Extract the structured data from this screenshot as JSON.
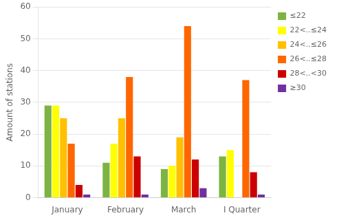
{
  "chart_data": {
    "type": "bar",
    "categories": [
      "January",
      "February",
      "March",
      "I Quarter"
    ],
    "series": [
      {
        "name": "≤22",
        "color": "#7cb342",
        "values": [
          29,
          11,
          9,
          13
        ]
      },
      {
        "name": "22<..≤24",
        "color": "#ffff00",
        "values": [
          29,
          17,
          10,
          15
        ]
      },
      {
        "name": "24<..≤26",
        "color": "#ffc000",
        "values": [
          25,
          25,
          19,
          0
        ]
      },
      {
        "name": "26<..≤28",
        "color": "#ff6600",
        "values": [
          17,
          38,
          54,
          37
        ]
      },
      {
        "name": "28<..<30",
        "color": "#cc0000",
        "values": [
          4,
          13,
          12,
          8
        ]
      },
      {
        "name": "≥30",
        "color": "#7030a0",
        "values": [
          1,
          1,
          3,
          1
        ]
      }
    ],
    "ylabel": "Amount of stations",
    "ylim": [
      0,
      60
    ],
    "yticks": [
      0,
      10,
      20,
      30,
      40,
      50,
      60
    ],
    "grid": true,
    "legend": "upper right"
  }
}
